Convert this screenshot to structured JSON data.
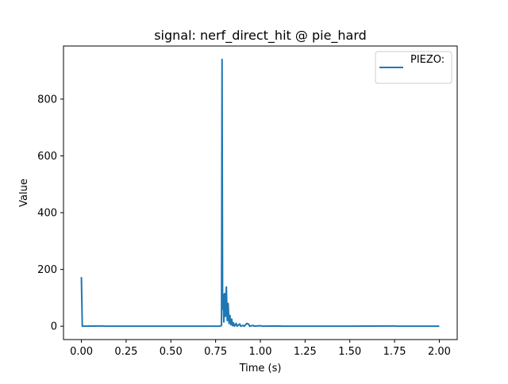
{
  "chart_data": {
    "type": "line",
    "title": "signal: nerf_direct_hit @ pie_hard",
    "xlabel": "Time (s)",
    "ylabel": "Value",
    "xlim": [
      -0.1,
      2.1
    ],
    "ylim": [
      -47,
      987
    ],
    "x_ticks": [
      0.0,
      0.25,
      0.5,
      0.75,
      1.0,
      1.25,
      1.5,
      1.75,
      2.0
    ],
    "x_tick_labels": [
      "0.00",
      "0.25",
      "0.50",
      "0.75",
      "1.00",
      "1.25",
      "1.50",
      "1.75",
      "2.00"
    ],
    "y_ticks": [
      0,
      200,
      400,
      600,
      800
    ],
    "y_tick_labels": [
      "0",
      "200",
      "400",
      "600",
      "800"
    ],
    "grid": false,
    "legend_position": "upper right",
    "series": [
      {
        "name": "PIEZO:",
        "color": "#1f77b4",
        "points": [
          [
            0.0,
            173
          ],
          [
            0.005,
            0
          ],
          [
            0.12,
            1
          ],
          [
            0.13,
            0
          ],
          [
            0.5,
            0
          ],
          [
            0.775,
            0
          ],
          [
            0.783,
            3
          ],
          [
            0.786,
            940
          ],
          [
            0.789,
            60
          ],
          [
            0.792,
            112
          ],
          [
            0.796,
            15
          ],
          [
            0.8,
            115
          ],
          [
            0.805,
            35
          ],
          [
            0.81,
            138
          ],
          [
            0.815,
            20
          ],
          [
            0.82,
            80
          ],
          [
            0.825,
            10
          ],
          [
            0.83,
            38
          ],
          [
            0.835,
            5
          ],
          [
            0.84,
            25
          ],
          [
            0.845,
            2
          ],
          [
            0.85,
            12
          ],
          [
            0.855,
            0
          ],
          [
            0.865,
            10
          ],
          [
            0.87,
            0
          ],
          [
            0.885,
            8
          ],
          [
            0.89,
            0
          ],
          [
            0.905,
            3
          ],
          [
            0.91,
            0
          ],
          [
            0.925,
            10
          ],
          [
            0.935,
            7
          ],
          [
            0.94,
            0
          ],
          [
            0.96,
            3
          ],
          [
            0.965,
            0
          ],
          [
            1.0,
            2
          ],
          [
            1.01,
            0
          ],
          [
            1.1,
            1
          ],
          [
            1.12,
            0
          ],
          [
            1.5,
            0
          ],
          [
            1.75,
            1
          ],
          [
            1.76,
            0
          ],
          [
            2.0,
            0
          ]
        ]
      }
    ]
  }
}
